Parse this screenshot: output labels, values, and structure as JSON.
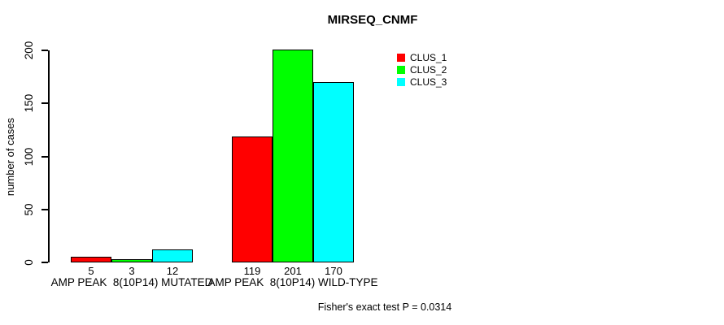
{
  "chart_data": {
    "type": "bar",
    "title": "MIRSEQ_CNMF",
    "xlabel": "",
    "ylabel": "number of cases",
    "ylim": [
      0,
      200
    ],
    "yticks": [
      0,
      50,
      100,
      150,
      200
    ],
    "grid": false,
    "legend_position": "top-right",
    "bar_value_labels_shown": true,
    "categories": [
      "AMP PEAK  8(10P14) MUTATED",
      "AMP PEAK  8(10P14) WILD-TYPE"
    ],
    "series": [
      {
        "name": "CLUS_1",
        "color": "#FF0000",
        "values": [
          5,
          119
        ]
      },
      {
        "name": "CLUS_2",
        "color": "#00FF00",
        "values": [
          3,
          201
        ]
      },
      {
        "name": "CLUS_3",
        "color": "#00FFFF",
        "values": [
          12,
          170
        ]
      }
    ],
    "annotation": "Fisher's exact test P = 0.0314"
  },
  "colors": {
    "background": "#FFFFFF",
    "axis": "#000000",
    "bar_border": "#000000"
  }
}
